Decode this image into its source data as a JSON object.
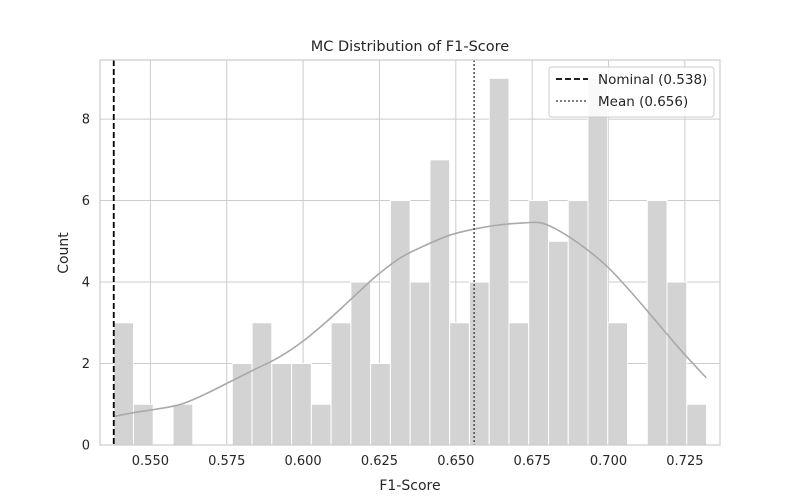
{
  "chart_data": {
    "type": "bar",
    "title": "MC Distribution of F1-Score",
    "xlabel": "F1-Score",
    "ylabel": "Count",
    "xlim": [
      0.5335,
      0.7365
    ],
    "ylim": [
      0,
      9.45
    ],
    "x_ticks": [
      0.55,
      0.575,
      0.6,
      0.625,
      0.65,
      0.675,
      0.7,
      0.725
    ],
    "x_tick_labels": [
      "0.550",
      "0.575",
      "0.600",
      "0.625",
      "0.650",
      "0.675",
      "0.700",
      "0.725"
    ],
    "y_ticks": [
      0,
      2,
      4,
      6,
      8
    ],
    "y_tick_labels": [
      "0",
      "2",
      "4",
      "6",
      "8"
    ],
    "grid": true,
    "legend_position": "top-right",
    "bins": {
      "start": 0.538,
      "width": 0.00647,
      "counts": [
        3,
        1,
        0,
        1,
        0,
        0,
        2,
        3,
        2,
        2,
        1,
        3,
        4,
        2,
        6,
        4,
        7,
        3,
        4,
        9,
        3,
        6,
        5,
        6,
        9,
        3,
        0,
        6,
        4,
        1
      ]
    },
    "kde": {
      "x": [
        0.538,
        0.545,
        0.552,
        0.56,
        0.568,
        0.576,
        0.584,
        0.592,
        0.6,
        0.608,
        0.616,
        0.624,
        0.632,
        0.64,
        0.648,
        0.656,
        0.664,
        0.672,
        0.678,
        0.684,
        0.692,
        0.7,
        0.708,
        0.716,
        0.724,
        0.732
      ],
      "y": [
        0.7,
        0.8,
        0.88,
        1.0,
        1.25,
        1.55,
        1.85,
        2.15,
        2.55,
        3.05,
        3.6,
        4.15,
        4.6,
        4.9,
        5.15,
        5.3,
        5.4,
        5.45,
        5.45,
        5.25,
        4.85,
        4.35,
        3.7,
        3.0,
        2.3,
        1.65
      ]
    },
    "reference_lines": [
      {
        "name": "Nominal (0.538)",
        "x": 0.538,
        "style": "dashed",
        "color": "#000000"
      },
      {
        "name": "Mean (0.656)",
        "x": 0.656,
        "style": "dotted",
        "color": "#555555"
      }
    ],
    "colors": {
      "bar_fill": "#d3d3d3",
      "bar_edge": "#ffffff",
      "kde_line": "#a9a9a9",
      "grid": "#cccccc",
      "frame": "#cccccc"
    }
  }
}
